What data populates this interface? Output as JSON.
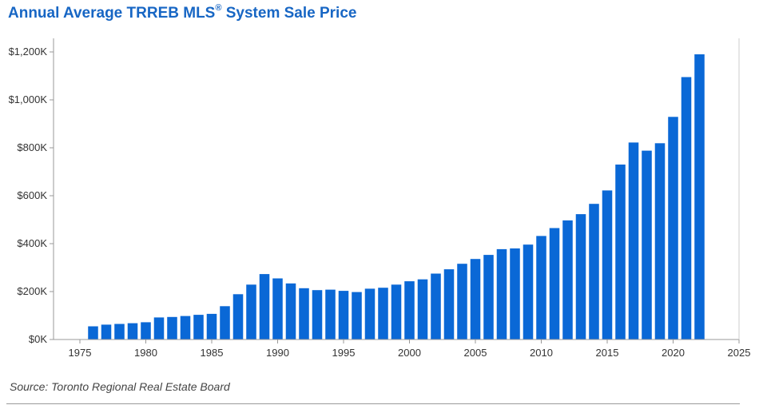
{
  "title": {
    "main": "Annual Average TRREB MLS",
    "mark": "®",
    "rest": " System Sale Price"
  },
  "source": "Source: Toronto Regional Real Estate Board",
  "colors": {
    "bar": "#0a68d6",
    "title": "#1766c4",
    "axis": "#999999"
  },
  "chart_data": {
    "type": "bar",
    "title": "Annual Average TRREB MLS® System Sale Price",
    "xlabel": "",
    "ylabel": "",
    "xlim": [
      1973,
      2025
    ],
    "ylim": [
      0,
      1200
    ],
    "unit": "thousands of dollars",
    "grid": false,
    "legend": "none",
    "x_ticks": [
      1975,
      1980,
      1985,
      1990,
      1995,
      2000,
      2005,
      2010,
      2015,
      2020,
      2025
    ],
    "y_ticks": [
      {
        "value": 0,
        "label": "$0K"
      },
      {
        "value": 200,
        "label": "$200K"
      },
      {
        "value": 400,
        "label": "$400K"
      },
      {
        "value": 600,
        "label": "$600K"
      },
      {
        "value": 800,
        "label": "$800K"
      },
      {
        "value": 1000,
        "label": "$1,000K"
      },
      {
        "value": 1200,
        "label": "$1,200K"
      }
    ],
    "x": [
      1976,
      1977,
      1978,
      1979,
      1980,
      1981,
      1982,
      1983,
      1984,
      1985,
      1986,
      1987,
      1988,
      1989,
      1990,
      1991,
      1992,
      1993,
      1994,
      1995,
      1996,
      1997,
      1998,
      1999,
      2000,
      2001,
      2002,
      2003,
      2004,
      2005,
      2006,
      2007,
      2008,
      2009,
      2010,
      2011,
      2012,
      2013,
      2014,
      2015,
      2016,
      2017,
      2018,
      2019,
      2020,
      2021,
      2022
    ],
    "values": [
      55,
      62,
      65,
      68,
      72,
      92,
      94,
      98,
      103,
      107,
      139,
      189,
      229,
      273,
      255,
      234,
      214,
      206,
      208,
      203,
      198,
      212,
      216,
      229,
      243,
      251,
      275,
      293,
      316,
      336,
      353,
      377,
      380,
      396,
      432,
      465,
      497,
      523,
      566,
      622,
      730,
      822,
      788,
      819,
      929,
      1095,
      1190
    ]
  }
}
